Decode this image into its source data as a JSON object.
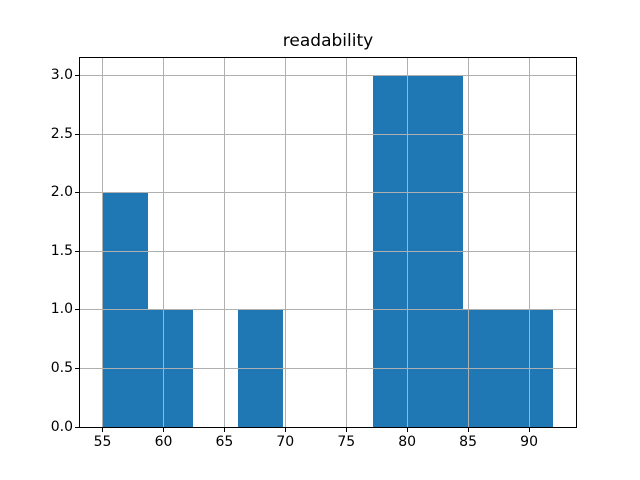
{
  "chart_data": {
    "type": "bar",
    "subtype": "histogram",
    "title": "readability",
    "bin_edges": [
      55.0,
      58.7,
      62.4,
      66.1,
      69.8,
      73.5,
      77.2,
      80.9,
      84.6,
      88.3,
      92.0
    ],
    "counts": [
      2,
      1,
      0,
      1,
      0,
      0,
      3,
      3,
      1,
      1
    ],
    "xlabel": "",
    "ylabel": "",
    "xlim": [
      53.15,
      93.85
    ],
    "ylim": [
      0,
      3.15
    ],
    "x_ticks": [
      55,
      60,
      65,
      70,
      75,
      80,
      85,
      90
    ],
    "x_tick_labels": [
      "55",
      "60",
      "65",
      "70",
      "75",
      "80",
      "85",
      "90"
    ],
    "y_ticks": [
      0.0,
      0.5,
      1.0,
      1.5,
      2.0,
      2.5,
      3.0
    ],
    "y_tick_labels": [
      "0.0",
      "0.5",
      "1.0",
      "1.5",
      "2.0",
      "2.5",
      "3.0"
    ],
    "grid": true,
    "legend": false,
    "bar_color": "#1f77b4",
    "grid_color": "#b0b0b0",
    "spine_color": "#000000"
  }
}
